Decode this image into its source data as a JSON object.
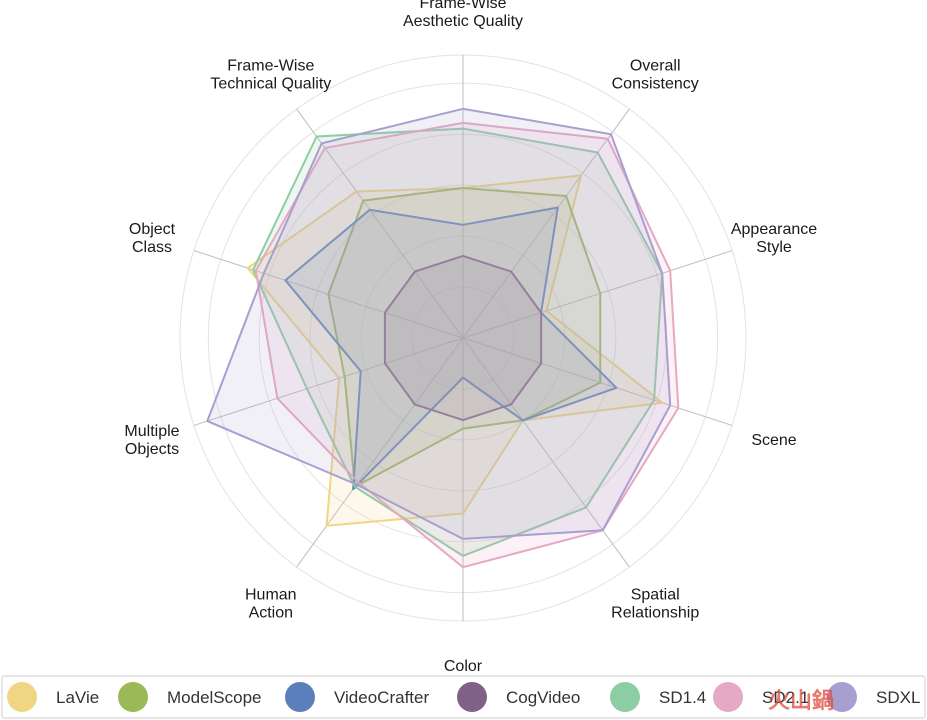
{
  "chart_data": {
    "type": "radar",
    "axes": [
      [
        "Frame-Wise",
        "Aesthetic Quality"
      ],
      [
        "Overall",
        "Consistency"
      ],
      [
        "Appearance",
        "Style"
      ],
      [
        "Scene"
      ],
      [
        "Spatial",
        "Relationship"
      ],
      [
        "Color"
      ],
      [
        "Human",
        "Action"
      ],
      [
        "Multiple",
        "Objects"
      ],
      [
        "Object",
        "Class"
      ],
      [
        "Frame-Wise",
        "Technical Quality"
      ]
    ],
    "range": [
      0,
      1
    ],
    "grid": true,
    "legend_position": "bottom",
    "series": [
      {
        "name": "LaVie",
        "color": "#f0d682",
        "values": [
          0.53,
          0.71,
          0.31,
          0.74,
          0.36,
          0.62,
          0.82,
          0.46,
          0.8,
          0.64
        ]
      },
      {
        "name": "ModelScope",
        "color": "#9bb957",
        "values": [
          0.53,
          0.62,
          0.51,
          0.51,
          0.36,
          0.32,
          0.65,
          0.44,
          0.5,
          0.6
        ]
      },
      {
        "name": "VideoCrafter",
        "color": "#5b7fbb",
        "values": [
          0.4,
          0.57,
          0.29,
          0.57,
          0.36,
          0.14,
          0.66,
          0.38,
          0.66,
          0.56
        ]
      },
      {
        "name": "CogVideo",
        "color": "#806086",
        "values": [
          0.29,
          0.29,
          0.29,
          0.29,
          0.29,
          0.29,
          0.29,
          0.29,
          0.29,
          0.29
        ]
      },
      {
        "name": "SD1.4",
        "color": "#8ccda3",
        "values": [
          0.74,
          0.81,
          0.74,
          0.71,
          0.74,
          0.77,
          0.65,
          0.58,
          0.78,
          0.88
        ]
      },
      {
        "name": "SD2.1",
        "color": "#e6a9c4",
        "values": [
          0.76,
          0.87,
          0.77,
          0.8,
          0.84,
          0.81,
          0.63,
          0.69,
          0.77,
          0.83
        ]
      },
      {
        "name": "SDXL",
        "color": "#a89fd0",
        "values": [
          0.81,
          0.89,
          0.74,
          0.77,
          0.84,
          0.71,
          0.64,
          0.95,
          0.74,
          0.85
        ]
      }
    ]
  },
  "watermark": {
    "text": "火山鍋"
  }
}
